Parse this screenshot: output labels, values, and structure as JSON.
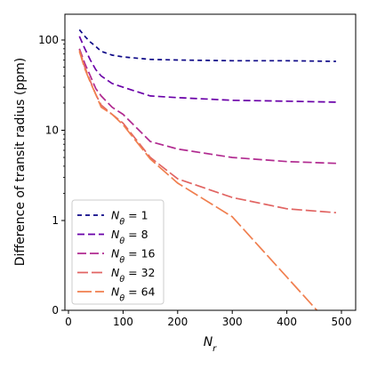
{
  "chart_data": {
    "type": "line",
    "xlabel_main": "N",
    "xlabel_sub": "r",
    "ylabel": "Difference of transit radius (ppm)",
    "xlim": [
      -5,
      515
    ],
    "ylim_display": [
      0,
      160
    ],
    "y_scale": "symlog (linear below 1, log above 1)",
    "x_ticks": [
      0,
      100,
      200,
      300,
      400,
      500
    ],
    "y_ticks": [
      {
        "value": 0,
        "label": "0"
      },
      {
        "value": 1,
        "label": "1"
      },
      {
        "value": 10,
        "label": "10"
      },
      {
        "value": 100,
        "label": "100"
      }
    ],
    "legend_position": "lower-left",
    "legend_prefix_main": "N",
    "legend_prefix_sub": "θ",
    "series": [
      {
        "name": "1",
        "legend": " = 1",
        "color": "#0d0887",
        "dash": "5,4",
        "x": [
          20,
          30,
          40,
          50,
          60,
          80,
          100,
          150,
          200,
          300,
          400,
          490
        ],
        "y": [
          130,
          110,
          95,
          85,
          75,
          68,
          65,
          61,
          60,
          59,
          59,
          58
        ]
      },
      {
        "name": "8",
        "legend": " = 8",
        "color": "#6a00a8",
        "dash": "8,4",
        "x": [
          20,
          30,
          40,
          50,
          60,
          80,
          100,
          150,
          200,
          300,
          400,
          490
        ],
        "y": [
          110,
          80,
          60,
          47,
          40,
          33,
          30,
          24,
          23,
          21.5,
          21,
          20.5
        ]
      },
      {
        "name": "16",
        "legend": " = 16",
        "color": "#b12a90",
        "dash": "10,4",
        "x": [
          20,
          30,
          40,
          50,
          60,
          80,
          100,
          150,
          200,
          300,
          400,
          490
        ],
        "y": [
          80,
          55,
          40,
          29,
          24,
          18,
          15,
          7.5,
          6.2,
          5.0,
          4.5,
          4.3
        ]
      },
      {
        "name": "32",
        "legend": " = 32",
        "color": "#e16462",
        "dash": "12,4",
        "x": [
          20,
          30,
          40,
          50,
          60,
          80,
          100,
          150,
          200,
          300,
          400,
          490
        ],
        "y": [
          78,
          50,
          35,
          25,
          19,
          15,
          12,
          5.0,
          2.9,
          1.8,
          1.35,
          1.22
        ]
      },
      {
        "name": "64",
        "legend": " = 64",
        "color": "#f07f4f",
        "dash": "16,4",
        "x": [
          20,
          30,
          40,
          50,
          60,
          80,
          100,
          150,
          200,
          300,
          400,
          455
        ],
        "y": [
          75,
          48,
          34,
          25,
          18,
          15,
          11.5,
          4.8,
          2.6,
          1.1,
          0.37,
          0
        ]
      }
    ]
  }
}
